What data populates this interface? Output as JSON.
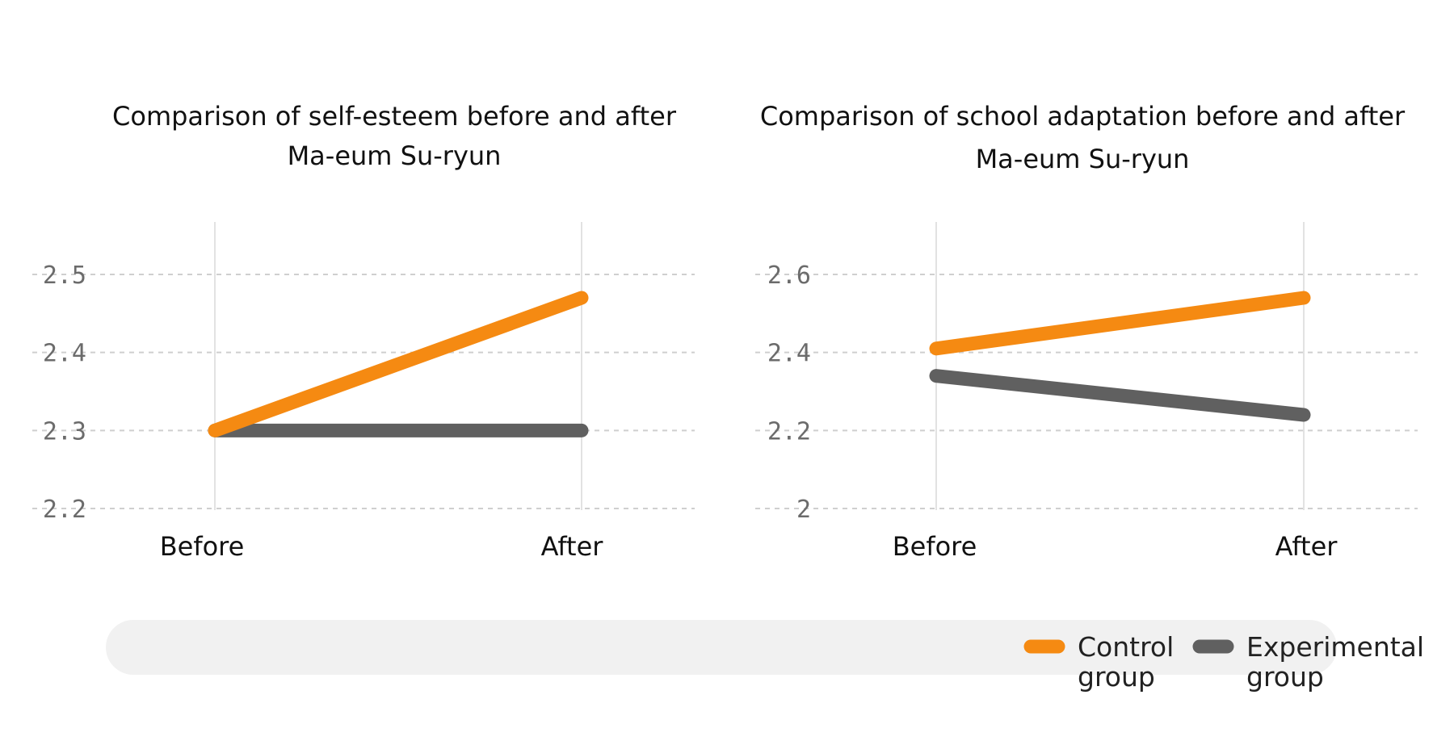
{
  "colors": {
    "control": "#f58a12",
    "experimental": "#606060",
    "legend_band": "#f1f1f1"
  },
  "legend": {
    "items": [
      {
        "key": "control",
        "line1": "Control",
        "line2": "group",
        "color": "#f58a12"
      },
      {
        "key": "experimental",
        "line1": "Experimental",
        "line2": "group",
        "color": "#606060"
      }
    ],
    "placement": "bottom"
  },
  "chart_data": [
    {
      "type": "line",
      "title_lines": [
        "Comparison of self-esteem before and after",
        "Ma-eum Su-ryun"
      ],
      "categories": [
        "Before",
        "After"
      ],
      "yticks": [
        "2.5",
        "2.4",
        "2.3",
        "2.2"
      ],
      "ylim": [
        2.2,
        2.5
      ],
      "grid": true,
      "series": [
        {
          "name": "Control group",
          "key": "control",
          "values": [
            2.3,
            2.47
          ]
        },
        {
          "name": "Experimental group",
          "key": "experimental",
          "values": [
            2.3,
            2.3
          ]
        }
      ]
    },
    {
      "type": "line",
      "title_lines": [
        "Comparison of school adaptation before and after",
        "Ma-eum Su-ryun"
      ],
      "categories": [
        "Before",
        "After"
      ],
      "yticks": [
        "2.6",
        "2.4",
        "2.2",
        "2"
      ],
      "ylim": [
        2.0,
        2.6
      ],
      "grid": true,
      "series": [
        {
          "name": "Control group",
          "key": "control",
          "values": [
            2.41,
            2.54
          ]
        },
        {
          "name": "Experimental group",
          "key": "experimental",
          "values": [
            2.34,
            2.24
          ]
        }
      ]
    }
  ]
}
